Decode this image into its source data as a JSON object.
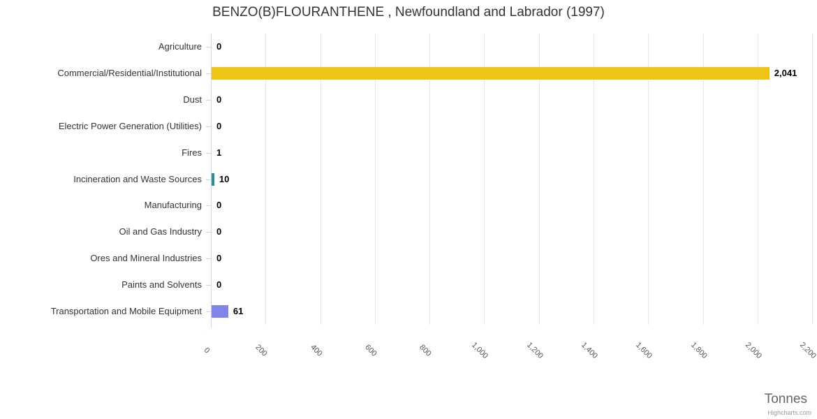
{
  "title": "BENZO(B)FLOURANTHENE , Newfoundland and Labrador (1997)",
  "credits_label": "Highcharts.com",
  "chart_data": {
    "type": "bar",
    "orientation": "horizontal",
    "title": "BENZO(B)FLOURANTHENE , Newfoundland and Labrador (1997)",
    "xlabel": "Tonnes",
    "ylabel": "",
    "xlim": [
      0,
      2200
    ],
    "tick_interval": 200,
    "grid": true,
    "legend": false,
    "categories": [
      "Agriculture",
      "Commercial/Residential/Institutional",
      "Dust",
      "Electric Power Generation (Utilities)",
      "Fires",
      "Incineration and Waste Sources",
      "Manufacturing",
      "Oil and Gas Industry",
      "Ores and Mineral Industries",
      "Paints and Solvents",
      "Transportation and Mobile Equipment"
    ],
    "values": [
      0,
      2041,
      0,
      0,
      1,
      10,
      0,
      0,
      0,
      0,
      61
    ],
    "value_labels": [
      "0",
      "2,041",
      "0",
      "0",
      "1",
      "10",
      "0",
      "0",
      "0",
      "0",
      "61"
    ],
    "colors": [
      null,
      "#efc414",
      null,
      null,
      null,
      "#2b908f",
      null,
      null,
      null,
      null,
      "#8085e9"
    ],
    "axis_ticks": [
      {
        "value": 0,
        "label": "0"
      },
      {
        "value": 200,
        "label": "200"
      },
      {
        "value": 400,
        "label": "400"
      },
      {
        "value": 600,
        "label": "600"
      },
      {
        "value": 800,
        "label": "800"
      },
      {
        "value": 1000,
        "label": "1,000"
      },
      {
        "value": 1200,
        "label": "1,200"
      },
      {
        "value": 1400,
        "label": "1,400"
      },
      {
        "value": 1600,
        "label": "1,600"
      },
      {
        "value": 1800,
        "label": "1,800"
      },
      {
        "value": 2000,
        "label": "2,000"
      },
      {
        "value": 2200,
        "label": "2,200"
      }
    ]
  },
  "styles": {
    "grid_color": "#e6e6e6",
    "axis_line_color": "#ccd6eb",
    "title_color": "#333333",
    "category_label_color": "#333333",
    "tick_label_color": "#555555",
    "data_label_color": "#000000",
    "axis_title_color": "#666666",
    "credits_color": "#999999"
  }
}
